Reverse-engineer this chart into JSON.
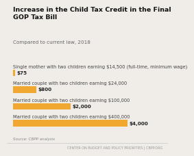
{
  "title": "Increase in the Child Tax Credit in the Final\nGOP Tax Bill",
  "subtitle": "Compared to current law, 2018",
  "categories": [
    "Single mother with two children earning $14,500 (full-time, minimum wage)",
    "Married couple with two children earning $24,000",
    "Married couple with two children earning $100,000",
    "Married couple with two children earning $400,000"
  ],
  "values": [
    75,
    800,
    2000,
    4000
  ],
  "labels": [
    "$75",
    "$800",
    "$2,000",
    "$4,000"
  ],
  "bar_color": "#F0A830",
  "bg_color": "#F0EDE8",
  "title_fontsize": 6.8,
  "subtitle_fontsize": 5.2,
  "category_fontsize": 4.8,
  "label_fontsize": 5.2,
  "source_fontsize": 4.0,
  "footer_fontsize": 3.5,
  "source_text": "Source: CBPP analysis",
  "footer_text": "CENTER ON BUDGET AND POLICY PRIORITIES | CBPP.ORG",
  "xlim": [
    0,
    4600
  ]
}
